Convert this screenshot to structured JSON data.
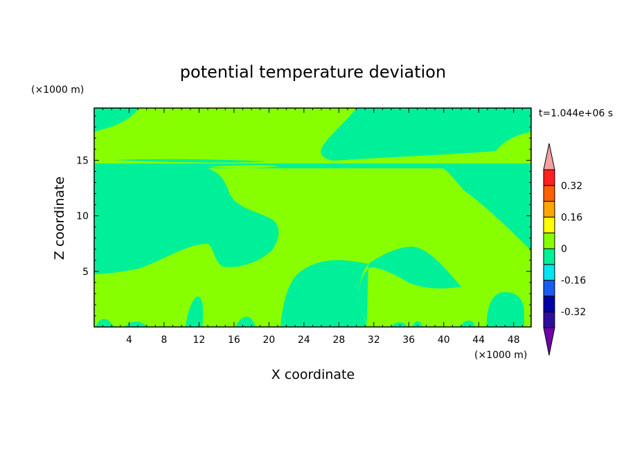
{
  "chart_data": {
    "type": "heatmap",
    "title": "potential temperature deviation",
    "xlabel": "X coordinate",
    "ylabel": "Z coordinate",
    "x_unit": "(×1000 m)",
    "y_unit": "(×1000 m)",
    "time_label": "t=1.044e+06 s",
    "xlim": [
      0,
      50
    ],
    "ylim": [
      0,
      19.7
    ],
    "x_ticks": [
      4,
      8,
      12,
      16,
      20,
      24,
      28,
      32,
      36,
      40,
      44,
      48
    ],
    "y_ticks": [
      5,
      10,
      15
    ],
    "colorbar": {
      "levels": [
        -0.4,
        -0.32,
        -0.24,
        -0.16,
        -0.08,
        0,
        0.08,
        0.16,
        0.24,
        0.32,
        0.4
      ],
      "labels": [
        "-0.32",
        "-0.16",
        "0",
        "0.16",
        "0.32"
      ],
      "label_values": [
        -0.32,
        -0.16,
        0,
        0.16,
        0.32
      ],
      "colors": [
        "#2E0E9A",
        "#0000A8",
        "#1A5CF0",
        "#00E6F0",
        "#00F09A",
        "#88FF00",
        "#FFFF00",
        "#FFA500",
        "#FF6000",
        "#FF2020"
      ],
      "over_color": "#F4A0A0",
      "under_color": "#7000A8"
    },
    "regions": [
      {
        "interval": [
          -0.08,
          0
        ],
        "color": "#00F09A"
      },
      {
        "interval": [
          0,
          0.08
        ],
        "color": "#88FF00"
      }
    ]
  }
}
